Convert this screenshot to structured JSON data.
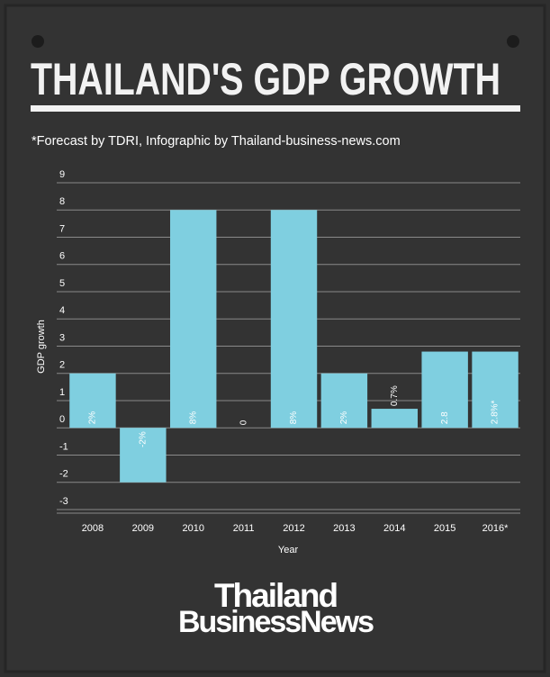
{
  "chart_data": {
    "type": "bar",
    "title": "THAILAND'S GDP GROWTH",
    "subtitle": "*Forecast by TDRI, Infographic by Thailand-business-news.com",
    "y_label": "GDP growth",
    "x_label": "Year",
    "categories": [
      "2008",
      "2009",
      "2010",
      "2011",
      "2012",
      "2013",
      "2014",
      "2015",
      "2016*"
    ],
    "values": [
      2,
      -2,
      8,
      0,
      8,
      2,
      0.7,
      2.8,
      2.8
    ],
    "value_labels": [
      "2%",
      "-2%",
      "8%",
      "0",
      "8%",
      "2%",
      "0.7%",
      "2.8",
      "2.8%*"
    ],
    "color": "#7fcfe0",
    "ylim": [
      -3,
      9
    ],
    "yticks": [
      -3,
      -2,
      -1,
      0,
      1,
      2,
      3,
      4,
      5,
      6,
      7,
      8,
      9
    ],
    "grid": true
  },
  "footer": {
    "brand_line1": "Thailand",
    "brand_line2": "BusinessNews"
  }
}
